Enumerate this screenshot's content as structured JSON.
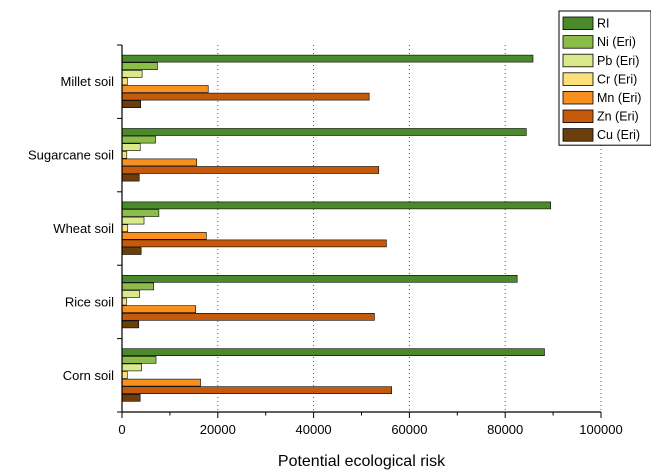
{
  "chart_data": {
    "type": "bar",
    "orientation": "horizontal",
    "xlabel": "Potential ecological risk",
    "ylabel": "",
    "xlim": [
      0,
      100000
    ],
    "xticks": [
      0,
      20000,
      40000,
      60000,
      80000,
      100000
    ],
    "xtick_labels": [
      "0",
      "20000",
      "40000",
      "60000",
      "80000",
      "100000"
    ],
    "grid": "vertical dotted",
    "legend_position": "top-right",
    "categories": [
      "Millet soil",
      "Sugarcane soil",
      "Wheat soil",
      "Rice soil",
      "Corn soil"
    ],
    "series": [
      {
        "name": "RI",
        "color": "#4b8a2b",
        "values": [
          85800,
          84400,
          89500,
          82500,
          88200
        ]
      },
      {
        "name": "Ni (Eri)",
        "color": "#8cbd4a",
        "values": [
          7400,
          7000,
          7700,
          6600,
          7100
        ]
      },
      {
        "name": "Pb (Eri)",
        "color": "#dbe98a",
        "values": [
          4200,
          3800,
          4600,
          3700,
          4100
        ]
      },
      {
        "name": "Cr (Eri)",
        "color": "#fde07a",
        "values": [
          1100,
          1000,
          1200,
          900,
          1100
        ]
      },
      {
        "name": "Mn (Eri)",
        "color": "#f7901e",
        "values": [
          18000,
          15600,
          17600,
          15400,
          16400
        ]
      },
      {
        "name": "Zn (Eri)",
        "color": "#c55a0c",
        "values": [
          51600,
          53600,
          55200,
          52700,
          56300
        ]
      },
      {
        "name": "Cu (Eri)",
        "color": "#6b3e0c",
        "values": [
          3900,
          3600,
          4000,
          3500,
          3800
        ]
      }
    ]
  }
}
